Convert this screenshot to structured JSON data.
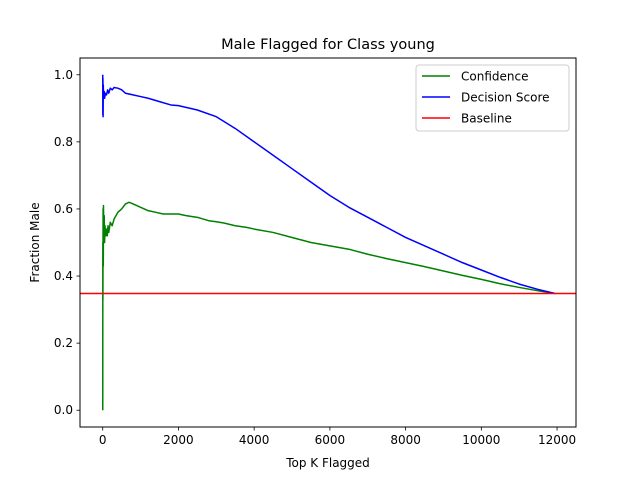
{
  "chart_data": {
    "type": "line",
    "title": "Male Flagged for Class young",
    "xlabel": "Top K Flagged",
    "ylabel": "Fraction Male",
    "xlim": [
      -600,
      12500
    ],
    "ylim": [
      -0.05,
      1.05
    ],
    "xticks": [
      0,
      2000,
      4000,
      6000,
      8000,
      10000,
      12000
    ],
    "xtick_labels": [
      "0",
      "2000",
      "4000",
      "6000",
      "8000",
      "10000",
      "12000"
    ],
    "yticks": [
      0.0,
      0.2,
      0.4,
      0.6,
      0.8,
      1.0
    ],
    "ytick_labels": [
      "0.0",
      "0.2",
      "0.4",
      "0.6",
      "0.8",
      "1.0"
    ],
    "grid": false,
    "legend_position": "top-right",
    "series": [
      {
        "name": "Confidence",
        "color": "#008000",
        "x": [
          1,
          3,
          5,
          10,
          15,
          20,
          30,
          40,
          50,
          60,
          80,
          100,
          120,
          140,
          160,
          200,
          250,
          300,
          400,
          500,
          600,
          700,
          800,
          900,
          1000,
          1200,
          1400,
          1600,
          1800,
          2000,
          2200,
          2500,
          2800,
          3000,
          3200,
          3500,
          3800,
          4000,
          4500,
          5000,
          5500,
          6000,
          6500,
          7000,
          7500,
          8000,
          8500,
          9000,
          9500,
          10000,
          10500,
          11000,
          11500,
          11950
        ],
        "y": [
          0.0,
          0.5,
          0.33,
          0.6,
          0.43,
          0.61,
          0.52,
          0.58,
          0.5,
          0.55,
          0.52,
          0.54,
          0.52,
          0.55,
          0.53,
          0.56,
          0.55,
          0.57,
          0.59,
          0.6,
          0.615,
          0.62,
          0.615,
          0.61,
          0.605,
          0.595,
          0.59,
          0.585,
          0.585,
          0.585,
          0.58,
          0.575,
          0.565,
          0.562,
          0.558,
          0.55,
          0.545,
          0.54,
          0.53,
          0.515,
          0.5,
          0.49,
          0.48,
          0.465,
          0.452,
          0.44,
          0.428,
          0.415,
          0.402,
          0.39,
          0.377,
          0.366,
          0.356,
          0.348
        ]
      },
      {
        "name": "Decision Score",
        "color": "#0000ff",
        "x": [
          1,
          3,
          5,
          10,
          15,
          20,
          30,
          40,
          50,
          70,
          100,
          130,
          160,
          200,
          250,
          300,
          400,
          500,
          600,
          800,
          1000,
          1200,
          1500,
          1800,
          2000,
          2500,
          3000,
          3500,
          4000,
          4500,
          5000,
          5500,
          6000,
          6500,
          7000,
          7500,
          8000,
          8500,
          9000,
          9500,
          10000,
          10500,
          11000,
          11500,
          11950
        ],
        "y": [
          1.0,
          0.88,
          0.99,
          0.875,
          0.97,
          0.94,
          0.93,
          0.95,
          0.93,
          0.945,
          0.94,
          0.955,
          0.945,
          0.96,
          0.955,
          0.962,
          0.96,
          0.955,
          0.945,
          0.94,
          0.935,
          0.93,
          0.92,
          0.91,
          0.908,
          0.895,
          0.875,
          0.84,
          0.8,
          0.76,
          0.72,
          0.68,
          0.64,
          0.605,
          0.575,
          0.545,
          0.515,
          0.49,
          0.465,
          0.44,
          0.418,
          0.396,
          0.376,
          0.36,
          0.348
        ]
      },
      {
        "name": "Baseline",
        "color": "#ff0000",
        "y_constant": 0.348
      }
    ]
  }
}
